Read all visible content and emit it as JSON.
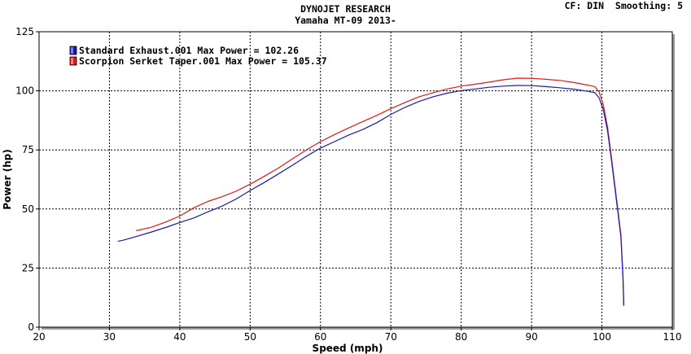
{
  "header": {
    "title": "DYNOJET RESEARCH",
    "subtitle": "Yamaha MT-09 2013-",
    "settings": "CF: DIN  Smoothing: 5"
  },
  "colors": {
    "standard": "#1a1aa8",
    "scorpion": "#e01818",
    "frame": "#000000",
    "grid": "#000000"
  },
  "chart_data": {
    "type": "line",
    "title": "DYNOJET RESEARCH",
    "subtitle": "Yamaha MT-09 2013-",
    "xlabel": "Speed (mph)",
    "ylabel": "Power (hp)",
    "xlim": [
      20,
      110
    ],
    "ylim": [
      0,
      125
    ],
    "xticks": [
      20,
      30,
      40,
      50,
      60,
      70,
      80,
      90,
      100,
      110
    ],
    "yticks": [
      0,
      25,
      50,
      75,
      100,
      125
    ],
    "grid": true,
    "legend_position": "top-left",
    "series": [
      {
        "name": "Standard Exhaust.001 Max Power = 102.26",
        "color": "#1a1aa8",
        "points": [
          [
            31.2,
            36.3
          ],
          [
            32,
            36.8
          ],
          [
            34,
            38.5
          ],
          [
            36,
            40.3
          ],
          [
            38,
            42.2
          ],
          [
            40,
            44.3
          ],
          [
            42,
            46.2
          ],
          [
            44,
            48.8
          ],
          [
            46,
            51.2
          ],
          [
            48,
            54.2
          ],
          [
            50,
            57.8
          ],
          [
            52,
            61.2
          ],
          [
            54,
            64.8
          ],
          [
            56,
            68.5
          ],
          [
            58,
            72.3
          ],
          [
            60,
            75.8
          ],
          [
            62,
            78.5
          ],
          [
            64,
            81.3
          ],
          [
            66,
            83.6
          ],
          [
            68,
            86.5
          ],
          [
            70,
            90
          ],
          [
            72,
            93
          ],
          [
            74,
            95.5
          ],
          [
            76,
            97.5
          ],
          [
            78,
            99
          ],
          [
            80,
            100.1
          ],
          [
            82,
            100.8
          ],
          [
            84,
            101.5
          ],
          [
            86,
            102
          ],
          [
            88,
            102.26
          ],
          [
            90,
            102.2
          ],
          [
            92,
            101.8
          ],
          [
            94,
            101.3
          ],
          [
            96,
            100.7
          ],
          [
            98,
            99.8
          ],
          [
            99,
            99.2
          ],
          [
            99.6,
            97
          ],
          [
            100.2,
            92
          ],
          [
            100.8,
            83
          ],
          [
            101.3,
            72
          ],
          [
            101.8,
            60
          ],
          [
            102.3,
            48
          ],
          [
            102.7,
            38
          ],
          [
            103.0,
            20
          ],
          [
            103.1,
            9
          ]
        ]
      },
      {
        "name": "Scorpion Serket Taper.001 Max Power = 105.37",
        "color": "#e01818",
        "points": [
          [
            33.8,
            40.8
          ],
          [
            36,
            42.3
          ],
          [
            38,
            44.5
          ],
          [
            40,
            47
          ],
          [
            42,
            50.5
          ],
          [
            44,
            53.2
          ],
          [
            46,
            55.2
          ],
          [
            48,
            57.5
          ],
          [
            50,
            60.5
          ],
          [
            52,
            63.8
          ],
          [
            54,
            67.3
          ],
          [
            56,
            71.2
          ],
          [
            58,
            75
          ],
          [
            60,
            78.5
          ],
          [
            62,
            81.5
          ],
          [
            64,
            84.3
          ],
          [
            66,
            87
          ],
          [
            68,
            89.6
          ],
          [
            70,
            92.5
          ],
          [
            72,
            95
          ],
          [
            74,
            97.5
          ],
          [
            76,
            99.2
          ],
          [
            78,
            100.8
          ],
          [
            80,
            102
          ],
          [
            82,
            102.8
          ],
          [
            84,
            103.7
          ],
          [
            86,
            104.7
          ],
          [
            88,
            105.37
          ],
          [
            90,
            105.3
          ],
          [
            92,
            104.9
          ],
          [
            94,
            104.4
          ],
          [
            96,
            103.5
          ],
          [
            98,
            102.4
          ],
          [
            99,
            101.8
          ],
          [
            99.6,
            99.5
          ],
          [
            100.2,
            94
          ],
          [
            100.8,
            84.5
          ],
          [
            101.3,
            73
          ],
          [
            101.8,
            61
          ],
          [
            102.3,
            49
          ],
          [
            102.7,
            39
          ],
          [
            103.0,
            21
          ],
          [
            103.1,
            9.5
          ]
        ]
      }
    ]
  }
}
